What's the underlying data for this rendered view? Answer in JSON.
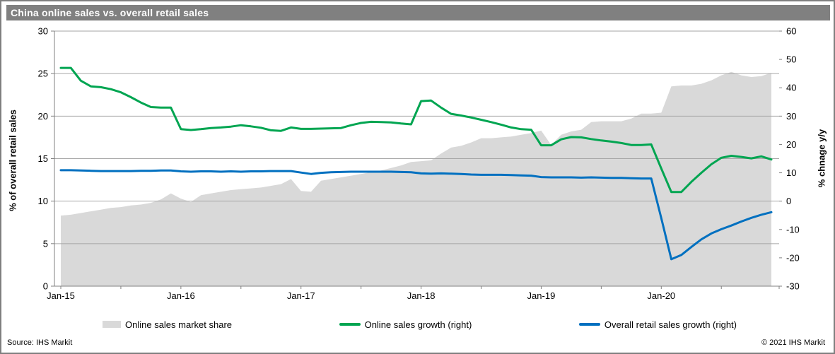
{
  "title": "China online sales vs. overall retail sales",
  "source": "Source: IHS Markit",
  "copyright": "© 2021  IHS Markit",
  "colors": {
    "title_bar": "#808080",
    "area": "#d9d9d9",
    "online_growth": "#00a551",
    "retail_growth": "#0070c0",
    "grid": "#a6a6a6",
    "axis": "#808080",
    "text": "#000000"
  },
  "chart_data": {
    "type": "area",
    "note": "monthly data, area on left axis, two lines on right axis",
    "categories": [
      "Jan-15",
      "Feb-15",
      "Mar-15",
      "Apr-15",
      "May-15",
      "Jun-15",
      "Jul-15",
      "Aug-15",
      "Sep-15",
      "Oct-15",
      "Nov-15",
      "Dec-15",
      "Jan-16",
      "Feb-16",
      "Mar-16",
      "Apr-16",
      "May-16",
      "Jun-16",
      "Jul-16",
      "Aug-16",
      "Sep-16",
      "Oct-16",
      "Nov-16",
      "Dec-16",
      "Jan-17",
      "Feb-17",
      "Mar-17",
      "Apr-17",
      "May-17",
      "Jun-17",
      "Jul-17",
      "Aug-17",
      "Sep-17",
      "Oct-17",
      "Nov-17",
      "Dec-17",
      "Jan-18",
      "Feb-18",
      "Mar-18",
      "Apr-18",
      "May-18",
      "Jun-18",
      "Jul-18",
      "Aug-18",
      "Sep-18",
      "Oct-18",
      "Nov-18",
      "Dec-18",
      "Jan-19",
      "Feb-19",
      "Mar-19",
      "Apr-19",
      "May-19",
      "Jun-19",
      "Jul-19",
      "Aug-19",
      "Sep-19",
      "Oct-19",
      "Nov-19",
      "Dec-19",
      "Jan-20",
      "Feb-20",
      "Mar-20",
      "Apr-20",
      "May-20",
      "Jun-20",
      "Jul-20",
      "Aug-20",
      "Sep-20",
      "Oct-20",
      "Nov-20",
      "Dec-20"
    ],
    "series": [
      {
        "name": "Online sales market share",
        "type": "area",
        "axis": "left",
        "color": "#d9d9d9",
        "values": [
          8.3,
          8.4,
          8.6,
          8.8,
          9.0,
          9.2,
          9.3,
          9.5,
          9.6,
          9.8,
          10.2,
          10.9,
          10.3,
          9.9,
          10.7,
          10.9,
          11.1,
          11.3,
          11.4,
          11.5,
          11.6,
          11.8,
          12.0,
          12.6,
          11.2,
          11.1,
          12.4,
          12.6,
          12.8,
          13.0,
          13.2,
          13.4,
          13.6,
          13.9,
          14.2,
          14.6,
          14.7,
          14.8,
          15.6,
          16.3,
          16.5,
          16.9,
          17.4,
          17.4,
          17.5,
          17.6,
          17.8,
          18.0,
          18.3,
          16.6,
          17.8,
          18.2,
          18.4,
          19.3,
          19.4,
          19.4,
          19.4,
          19.7,
          20.3,
          20.3,
          20.4,
          23.5,
          23.6,
          23.6,
          23.8,
          24.2,
          24.8,
          25.2,
          24.8,
          24.6,
          24.7,
          25.1
        ]
      },
      {
        "name": "Online sales growth (right)",
        "type": "line",
        "axis": "right",
        "color": "#00a551",
        "values": [
          47.0,
          47.0,
          42.5,
          40.5,
          40.2,
          39.5,
          38.4,
          36.7,
          34.8,
          33.2,
          33.0,
          33.0,
          25.4,
          25.1,
          25.4,
          25.8,
          26.0,
          26.3,
          26.8,
          26.4,
          25.9,
          25.0,
          24.8,
          26.0,
          25.5,
          25.5,
          25.6,
          25.7,
          25.8,
          26.8,
          27.6,
          28.0,
          27.9,
          27.8,
          27.4,
          27.1,
          35.3,
          35.5,
          33.0,
          30.8,
          30.2,
          29.5,
          28.7,
          27.9,
          27.0,
          26.0,
          25.4,
          25.2,
          19.7,
          19.7,
          21.8,
          22.6,
          22.5,
          21.9,
          21.4,
          21.0,
          20.5,
          19.8,
          19.8,
          20.0,
          11.5,
          3.2,
          3.2,
          6.8,
          10.0,
          13.0,
          15.3,
          16.0,
          15.6,
          15.1,
          15.8,
          14.7
        ]
      },
      {
        "name": "Overall retail sales growth (right)",
        "type": "line",
        "axis": "right",
        "color": "#0070c0",
        "values": [
          10.9,
          10.9,
          10.8,
          10.7,
          10.6,
          10.6,
          10.6,
          10.6,
          10.7,
          10.7,
          10.8,
          10.8,
          10.5,
          10.4,
          10.5,
          10.5,
          10.4,
          10.5,
          10.4,
          10.5,
          10.5,
          10.6,
          10.6,
          10.6,
          10.1,
          9.6,
          10.0,
          10.2,
          10.3,
          10.4,
          10.4,
          10.4,
          10.4,
          10.4,
          10.3,
          10.2,
          9.8,
          9.7,
          9.8,
          9.7,
          9.6,
          9.4,
          9.3,
          9.3,
          9.3,
          9.2,
          9.1,
          9.0,
          8.5,
          8.4,
          8.4,
          8.4,
          8.3,
          8.4,
          8.3,
          8.2,
          8.2,
          8.1,
          8.0,
          8.0,
          -6.0,
          -20.5,
          -19.0,
          -16.2,
          -13.5,
          -11.4,
          -9.9,
          -8.6,
          -7.2,
          -5.9,
          -4.8,
          -3.9
        ]
      }
    ],
    "left_axis": {
      "label": "% of overall retail sales",
      "min": 0,
      "max": 30,
      "ticks": [
        0,
        5,
        10,
        15,
        20,
        25,
        30
      ]
    },
    "right_axis": {
      "label": "% chnage y/y",
      "min": -30,
      "max": 60,
      "ticks": [
        -30,
        -20,
        -10,
        0,
        10,
        20,
        30,
        40,
        50,
        60
      ]
    },
    "x_tick_labels": [
      "Jan-15",
      "Jan-16",
      "Jan-17",
      "Jan-18",
      "Jan-19",
      "Jan-20"
    ],
    "x_minor_tick_interval_months": 6,
    "grid": true,
    "legend_position": "bottom"
  }
}
